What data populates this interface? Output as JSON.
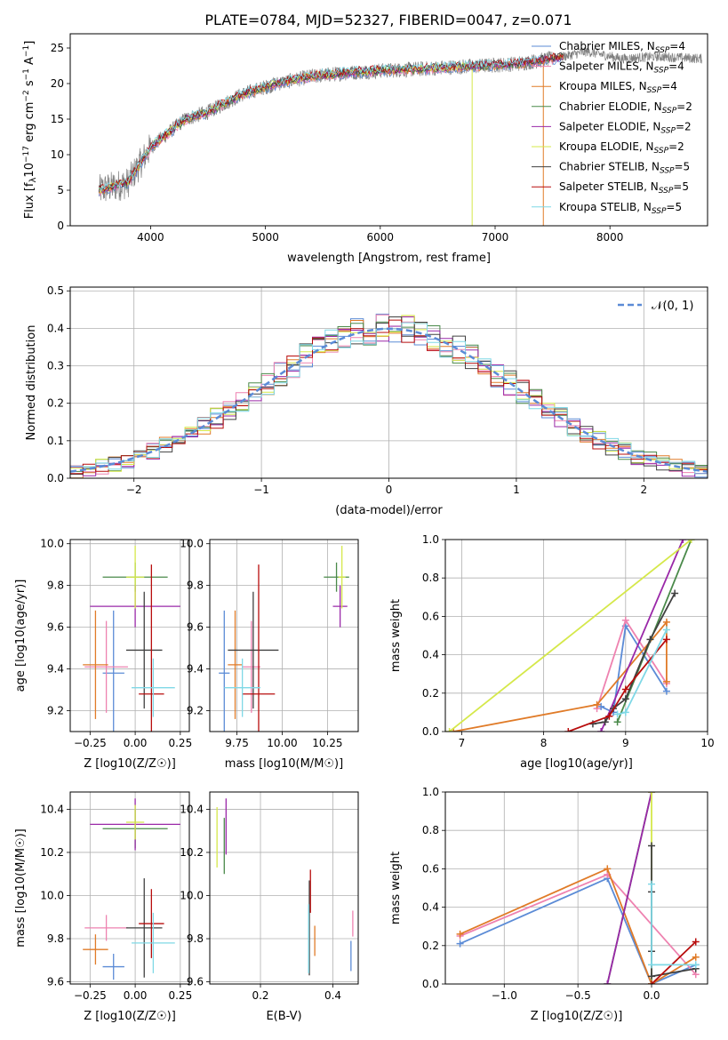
{
  "figure": {
    "title": "PLATE=0784, MJD=52327, FIBERID=0047, z=0.071"
  },
  "colors": {
    "chabrier_miles": "#5b8bd6",
    "salpeter_miles": "#ee82b0",
    "kroupa_miles": "#e07b28",
    "chabrier_elodie": "#4a8a4a",
    "salpeter_elodie": "#9a28a8",
    "kroupa_elodie": "#d5e84a",
    "chabrier_stelib": "#404040",
    "salpeter_stelib": "#b80d0d",
    "kroupa_stelib": "#7fd8e6",
    "normal_curve": "#5b8bd6",
    "grid": "#b0b0b0"
  },
  "chart_data": [
    {
      "type": "line",
      "xlabel": "wavelength [Angstrom, rest frame]",
      "ylabel": "Flux [f_λ10^-17 erg cm^-2 s^-1 A^-1]",
      "xlim": [
        3300,
        8850
      ],
      "ylim": [
        0,
        27
      ],
      "xticks": [
        "4000",
        "5000",
        "6000",
        "7000",
        "8000"
      ],
      "yticks": [
        "0",
        "5",
        "10",
        "15",
        "20",
        "25"
      ],
      "legend_placement": "right",
      "legend": [
        "Chabrier MILES, N_SSP=4",
        "Salpeter MILES, N_SSP=4",
        "Kroupa MILES, N_SSP=4",
        "Chabrier ELODIE, N_SSP=2",
        "Salpeter ELODIE, N_SSP=2",
        "Kroupa ELODIE, N_SSP=2",
        "Chabrier STELIB, N_SSP=5",
        "Salpeter STELIB, N_SSP=5",
        "Kroupa STELIB, N_SSP=5"
      ],
      "spectrum_points": [
        {
          "x": 3550,
          "y": 5
        },
        {
          "x": 3800,
          "y": 6
        },
        {
          "x": 4000,
          "y": 11
        },
        {
          "x": 4300,
          "y": 15
        },
        {
          "x": 4500,
          "y": 16
        },
        {
          "x": 4800,
          "y": 18.5
        },
        {
          "x": 5100,
          "y": 20
        },
        {
          "x": 5400,
          "y": 21
        },
        {
          "x": 5700,
          "y": 21.5
        },
        {
          "x": 6000,
          "y": 21.8
        },
        {
          "x": 6300,
          "y": 22
        },
        {
          "x": 6600,
          "y": 22.3
        },
        {
          "x": 6900,
          "y": 22.5
        },
        {
          "x": 7200,
          "y": 22.8
        },
        {
          "x": 7500,
          "y": 23.5
        },
        {
          "x": 7800,
          "y": 24.5
        },
        {
          "x": 8100,
          "y": 23.5
        },
        {
          "x": 8400,
          "y": 23.8
        },
        {
          "x": 8800,
          "y": 23.5
        }
      ]
    },
    {
      "type": "area",
      "xlabel": "(data-model)/error",
      "ylabel": "Normed distribution",
      "xlim": [
        -2.5,
        2.5
      ],
      "ylim": [
        0,
        0.51
      ],
      "xticks": [
        "−2",
        "−1",
        "0",
        "1",
        "2"
      ],
      "yticks": [
        "0.0",
        "0.1",
        "0.2",
        "0.3",
        "0.4",
        "0.5"
      ],
      "legend_placement": "top-right",
      "legend": [
        "𝒩(0, 1)"
      ],
      "bin_width": 0.1,
      "curve": "normal(0,1)"
    },
    {
      "type": "scatter",
      "xlabel": "Z [log10(Z/Z☉)]",
      "ylabel": "age [log10(age/yr)]",
      "xlim": [
        -0.36,
        0.3
      ],
      "ylim": [
        9.1,
        10.02
      ],
      "xticks": [
        "−0.25",
        "0.00",
        "0.25"
      ],
      "yticks": [
        "9.2",
        "9.4",
        "9.6",
        "9.8",
        "10.0"
      ],
      "points": [
        {
          "model": "chabrier_miles",
          "x": -0.12,
          "y": 9.38,
          "xerr": 0.06,
          "yerr": 0.3
        },
        {
          "model": "salpeter_miles",
          "x": -0.16,
          "y": 9.41,
          "xerr": 0.12,
          "yerr": 0.22
        },
        {
          "model": "kroupa_miles",
          "x": -0.22,
          "y": 9.42,
          "xerr": 0.07,
          "yerr": 0.26
        },
        {
          "model": "chabrier_elodie",
          "x": 0.0,
          "y": 9.84,
          "xerr": 0.18,
          "yerr": 0.07
        },
        {
          "model": "salpeter_elodie",
          "x": 0.0,
          "y": 9.7,
          "xerr": 0.25,
          "yerr": 0.1
        },
        {
          "model": "kroupa_elodie",
          "x": 0.0,
          "y": 9.84,
          "xerr": 0.05,
          "yerr": 0.15
        },
        {
          "model": "chabrier_stelib",
          "x": 0.05,
          "y": 9.49,
          "xerr": 0.1,
          "yerr": 0.28
        },
        {
          "model": "salpeter_stelib",
          "x": 0.09,
          "y": 9.28,
          "xerr": 0.07,
          "yerr": 0.62
        },
        {
          "model": "kroupa_stelib",
          "x": 0.1,
          "y": 9.31,
          "xerr": 0.12,
          "yerr": 0.14
        }
      ]
    },
    {
      "type": "scatter",
      "xlabel": "mass [log10(M/M☉)]",
      "ylabel": "",
      "xlim": [
        9.6,
        10.42
      ],
      "ylim": [
        9.1,
        10.02
      ],
      "xticks": [
        "9.75",
        "10.00",
        "10.25"
      ],
      "yticks": [
        "9.2",
        "9.4",
        "9.6",
        "9.8",
        "10.0"
      ],
      "points": [
        {
          "model": "chabrier_miles",
          "x": 9.68,
          "y": 9.38,
          "xerr": 0.03,
          "yerr": 0.3
        },
        {
          "model": "salpeter_miles",
          "x": 9.83,
          "y": 9.41,
          "xerr": 0.05,
          "yerr": 0.22
        },
        {
          "model": "kroupa_miles",
          "x": 9.74,
          "y": 9.42,
          "xerr": 0.04,
          "yerr": 0.26
        },
        {
          "model": "chabrier_elodie",
          "x": 10.3,
          "y": 9.84,
          "xerr": 0.07,
          "yerr": 0.07
        },
        {
          "model": "salpeter_elodie",
          "x": 10.32,
          "y": 9.7,
          "xerr": 0.04,
          "yerr": 0.1
        },
        {
          "model": "kroupa_elodie",
          "x": 10.33,
          "y": 9.84,
          "xerr": 0.02,
          "yerr": 0.15
        },
        {
          "model": "chabrier_stelib",
          "x": 9.84,
          "y": 9.49,
          "xerr": 0.14,
          "yerr": 0.28
        },
        {
          "model": "salpeter_stelib",
          "x": 9.87,
          "y": 9.28,
          "xerr": 0.09,
          "yerr": 0.62
        },
        {
          "model": "kroupa_stelib",
          "x": 9.78,
          "y": 9.31,
          "xerr": 0.1,
          "yerr": 0.14
        }
      ]
    },
    {
      "type": "line",
      "xlabel": "age [log10(age/yr)]",
      "ylabel": "mass weight",
      "xlim": [
        6.8,
        10
      ],
      "ylim": [
        0,
        1
      ],
      "xticks": [
        "7",
        "8",
        "9",
        "10"
      ],
      "yticks": [
        "0.0",
        "0.2",
        "0.4",
        "0.6",
        "0.8",
        "1.0"
      ],
      "series": [
        {
          "model": "chabrier_miles",
          "x": [
            8.7,
            8.85,
            9.0,
            9.5
          ],
          "y": [
            0.13,
            0.1,
            0.55,
            0.21
          ]
        },
        {
          "model": "salpeter_miles",
          "x": [
            8.65,
            9.0,
            9.5
          ],
          "y": [
            0.12,
            0.58,
            0.25
          ]
        },
        {
          "model": "kroupa_miles",
          "x": [
            6.9,
            8.65,
            9.5,
            9.5
          ],
          "y": [
            0.0,
            0.14,
            0.57,
            0.26
          ]
        },
        {
          "model": "chabrier_elodie",
          "x": [
            8.9,
            9.8
          ],
          "y": [
            0.05,
            1.0
          ]
        },
        {
          "model": "salpeter_elodie",
          "x": [
            8.7,
            9.7
          ],
          "y": [
            0.0,
            1.0
          ]
        },
        {
          "model": "kroupa_elodie",
          "x": [
            6.85,
            9.8
          ],
          "y": [
            0.0,
            1.0
          ]
        },
        {
          "model": "chabrier_stelib",
          "x": [
            8.6,
            8.75,
            8.85,
            9.0,
            9.3,
            9.6
          ],
          "y": [
            0.04,
            0.05,
            0.12,
            0.17,
            0.48,
            0.72
          ]
        },
        {
          "model": "salpeter_stelib",
          "x": [
            8.3,
            8.8,
            9.0,
            9.5
          ],
          "y": [
            0.0,
            0.08,
            0.22,
            0.48
          ]
        },
        {
          "model": "kroupa_stelib",
          "x": [
            8.9,
            9.0,
            9.5
          ],
          "y": [
            0.09,
            0.1,
            0.53
          ]
        }
      ]
    },
    {
      "type": "scatter",
      "xlabel": "Z [log10(Z/Z☉)]",
      "ylabel": "mass [log10(M/M☉)]",
      "xlim": [
        -0.36,
        0.3
      ],
      "ylim": [
        9.59,
        10.48
      ],
      "xticks": [
        "−0.25",
        "0.00",
        "0.25"
      ],
      "yticks": [
        "9.6",
        "9.8",
        "10.0",
        "10.2",
        "10.4"
      ],
      "points": [
        {
          "model": "chabrier_miles",
          "x": -0.12,
          "y": 9.67,
          "xerr": 0.06,
          "yerr": 0.06
        },
        {
          "model": "salpeter_miles",
          "x": -0.16,
          "y": 9.85,
          "xerr": 0.12,
          "yerr": 0.06
        },
        {
          "model": "kroupa_miles",
          "x": -0.22,
          "y": 9.75,
          "xerr": 0.07,
          "yerr": 0.07
        },
        {
          "model": "chabrier_elodie",
          "x": 0.0,
          "y": 10.31,
          "xerr": 0.18,
          "yerr": 0.09
        },
        {
          "model": "salpeter_elodie",
          "x": 0.0,
          "y": 10.33,
          "xerr": 0.25,
          "yerr": 0.12
        },
        {
          "model": "kroupa_elodie",
          "x": 0.0,
          "y": 10.34,
          "xerr": 0.05,
          "yerr": 0.08
        },
        {
          "model": "chabrier_stelib",
          "x": 0.05,
          "y": 9.85,
          "xerr": 0.1,
          "yerr": 0.23
        },
        {
          "model": "salpeter_stelib",
          "x": 0.09,
          "y": 9.87,
          "xerr": 0.07,
          "yerr": 0.16
        },
        {
          "model": "kroupa_stelib",
          "x": 0.1,
          "y": 9.78,
          "xerr": 0.12,
          "yerr": 0.14
        }
      ]
    },
    {
      "type": "scatter",
      "xlabel": "E(B-V)",
      "ylabel": "",
      "xlim": [
        0.06,
        0.47
      ],
      "ylim": [
        9.59,
        10.48
      ],
      "xticks": [
        "0.2",
        "0.4"
      ],
      "yticks": [
        "9.6",
        "9.8",
        "10.0",
        "10.2",
        "10.4"
      ],
      "points": [
        {
          "model": "chabrier_miles",
          "x": 0.45,
          "y": 9.72,
          "yerr": 0.07
        },
        {
          "model": "salpeter_miles",
          "x": 0.455,
          "y": 9.87,
          "yerr": 0.06
        },
        {
          "model": "kroupa_miles",
          "x": 0.35,
          "y": 9.79,
          "yerr": 0.07
        },
        {
          "model": "chabrier_elodie",
          "x": 0.1,
          "y": 10.23,
          "yerr": 0.13
        },
        {
          "model": "salpeter_elodie",
          "x": 0.105,
          "y": 10.32,
          "yerr": 0.13
        },
        {
          "model": "kroupa_elodie",
          "x": 0.08,
          "y": 10.27,
          "yerr": 0.14
        },
        {
          "model": "chabrier_stelib",
          "x": 0.335,
          "y": 9.85,
          "yerr": 0.22
        },
        {
          "model": "salpeter_stelib",
          "x": 0.338,
          "y": 10.02,
          "yerr": 0.1
        },
        {
          "model": "kroupa_stelib",
          "x": 0.333,
          "y": 9.8,
          "yerr": 0.16
        }
      ]
    },
    {
      "type": "line",
      "xlabel": "Z [log10(Z/Z☉)]",
      "ylabel": "mass weight",
      "xlim": [
        -1.4,
        0.38
      ],
      "ylim": [
        0,
        1
      ],
      "xticks": [
        "−1.0",
        "−0.5",
        "0.0"
      ],
      "yticks": [
        "0.0",
        "0.2",
        "0.4",
        "0.6",
        "0.8",
        "1.0"
      ],
      "series": [
        {
          "model": "chabrier_miles",
          "x": [
            -1.3,
            -0.3,
            0.0,
            0.3
          ],
          "y": [
            0.21,
            0.55,
            0.0,
            0.1
          ]
        },
        {
          "model": "salpeter_miles",
          "x": [
            -1.3,
            -0.3,
            0.3
          ],
          "y": [
            0.25,
            0.57,
            0.05
          ]
        },
        {
          "model": "kroupa_miles",
          "x": [
            -1.3,
            -0.3,
            0.0,
            0.3
          ],
          "y": [
            0.26,
            0.6,
            0.0,
            0.14
          ]
        },
        {
          "model": "chabrier_elodie",
          "x": [
            -0.3,
            0.0
          ],
          "y": [
            0.0,
            1.0
          ]
        },
        {
          "model": "salpeter_elodie",
          "x": [
            -0.3,
            0.0
          ],
          "y": [
            0.0,
            1.0
          ]
        },
        {
          "model": "kroupa_elodie",
          "x": [
            0.0,
            0.0
          ],
          "y": [
            0.0,
            1.0
          ]
        },
        {
          "model": "chabrier_stelib",
          "x": [
            0.0,
            0.0,
            0.0,
            0.0,
            0.3
          ],
          "y": [
            0.72,
            0.48,
            0.17,
            0.04,
            0.08
          ]
        },
        {
          "model": "salpeter_stelib",
          "x": [
            0.0,
            0.3
          ],
          "y": [
            0.0,
            0.22
          ]
        },
        {
          "model": "kroupa_stelib",
          "x": [
            0.0,
            0.0,
            0.3
          ],
          "y": [
            0.52,
            0.1,
            0.1
          ]
        }
      ]
    }
  ]
}
